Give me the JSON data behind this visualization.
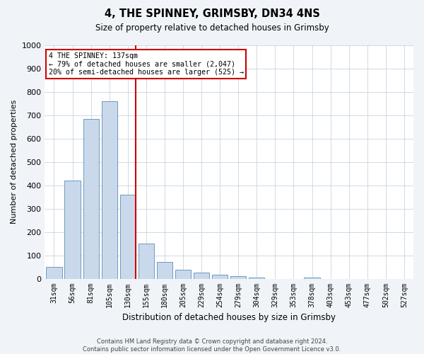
{
  "title1": "4, THE SPINNEY, GRIMSBY, DN34 4NS",
  "title2": "Size of property relative to detached houses in Grimsby",
  "xlabel": "Distribution of detached houses by size in Grimsby",
  "ylabel": "Number of detached properties",
  "categories": [
    "31sqm",
    "56sqm",
    "81sqm",
    "105sqm",
    "130sqm",
    "155sqm",
    "180sqm",
    "205sqm",
    "229sqm",
    "254sqm",
    "279sqm",
    "304sqm",
    "329sqm",
    "353sqm",
    "378sqm",
    "403sqm",
    "453sqm",
    "477sqm",
    "502sqm",
    "527sqm"
  ],
  "values": [
    50,
    420,
    685,
    760,
    360,
    150,
    70,
    37,
    25,
    17,
    10,
    5,
    0,
    0,
    5,
    0,
    0,
    0,
    0,
    0
  ],
  "bar_color": "#c9d9eb",
  "bar_edge_color": "#5b8db8",
  "highlight_line_index": 4,
  "highlight_color": "#cc0000",
  "ylim": [
    0,
    1000
  ],
  "yticks": [
    0,
    100,
    200,
    300,
    400,
    500,
    600,
    700,
    800,
    900,
    1000
  ],
  "annotation_text": "4 THE SPINNEY: 137sqm\n← 79% of detached houses are smaller (2,047)\n20% of semi-detached houses are larger (525) →",
  "annotation_box_color": "#ffffff",
  "annotation_box_edge": "#cc0000",
  "footer1": "Contains HM Land Registry data © Crown copyright and database right 2024.",
  "footer2": "Contains public sector information licensed under the Open Government Licence v3.0.",
  "bg_color": "#f0f4f8",
  "plot_bg_color": "#ffffff",
  "grid_color": "#c8d4e0"
}
